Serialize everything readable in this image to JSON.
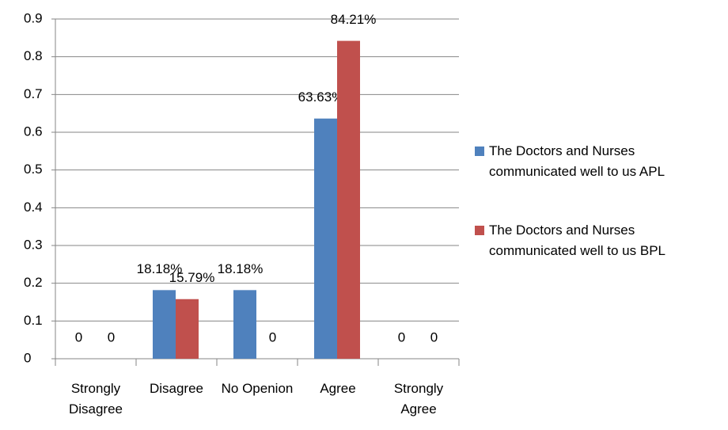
{
  "chart_data": {
    "type": "bar",
    "categories": [
      "Strongly Disagree",
      "Disagree",
      "No Openion",
      "Agree",
      "Strongly Agree"
    ],
    "series": [
      {
        "name": "The Doctors and Nurses communicated well to us APL",
        "color": "#4f81bd",
        "values": [
          0,
          0.1818,
          0.1818,
          0.6363,
          0
        ],
        "value_labels": [
          "0",
          "18.18%",
          "18.18%",
          "63.63%",
          "0"
        ]
      },
      {
        "name": "The Doctors and Nurses communicated well to us BPL",
        "color": "#c0504d",
        "values": [
          0,
          0.1579,
          0,
          0.8421,
          0
        ],
        "value_labels": [
          "0",
          "15.79%",
          "0",
          "84.21%",
          "0"
        ]
      }
    ],
    "ylim": [
      0,
      0.9
    ],
    "yticks": [
      0,
      0.1,
      0.2,
      0.3,
      0.4,
      0.5,
      0.6,
      0.7,
      0.8,
      0.9
    ],
    "grid": true,
    "legend": "right"
  }
}
